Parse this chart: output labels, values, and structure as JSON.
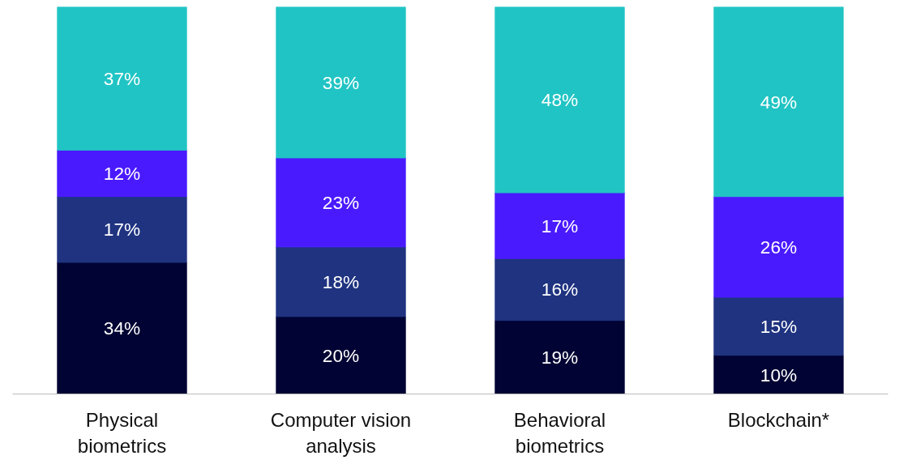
{
  "chart_data": {
    "type": "bar",
    "stacked": true,
    "tick_labels": "x",
    "grid": false,
    "categories": [
      "Physical biometrics",
      "Computer vision analysis",
      "Behavioral biometrics",
      "Blockchain*"
    ],
    "series": [
      {
        "color": "#000333",
        "values": [
          34,
          20,
          19,
          10
        ],
        "value_labels": [
          "34%",
          "20%",
          "19%",
          "10%"
        ]
      },
      {
        "color": "#1f3380",
        "values": [
          17,
          18,
          16,
          15
        ],
        "value_labels": [
          "17%",
          "18%",
          "16%",
          "15%"
        ]
      },
      {
        "color": "#4a1aff",
        "values": [
          12,
          23,
          17,
          26
        ],
        "value_labels": [
          "12%",
          "23%",
          "17%",
          "26%"
        ]
      },
      {
        "color": "#21c4c4",
        "values": [
          37,
          39,
          48,
          49
        ],
        "value_labels": [
          "37%",
          "39%",
          "48%",
          "49%"
        ]
      }
    ]
  }
}
